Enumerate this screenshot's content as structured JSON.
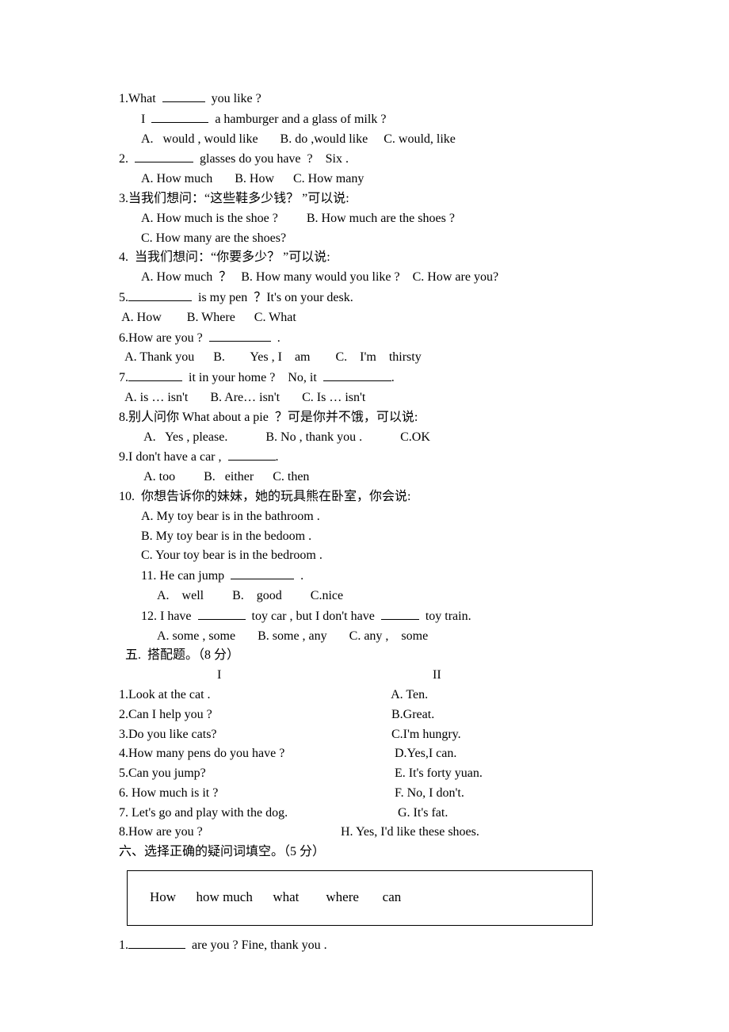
{
  "q1": {
    "line1_a": "1.What  ",
    "line1_b": "  you like ?",
    "line2_a": "I  ",
    "line2_b": "  a hamburger and a glass of milk ?",
    "opts": "A.   would , would like       B. do ,would like     C. would, like",
    "blank1_w": 54,
    "blank2_w": 72
  },
  "q2": {
    "line1_a": "2.  ",
    "line1_b": "  glasses do you have  ?    Six .",
    "opts": "A. How much       B. How      C. How many",
    "blank_w": 74
  },
  "q3": {
    "line1": "3.当我们想问：“这些鞋多少钱？ ”可以说:",
    "opts1": "A. How much is the shoe ?         B. How much are the shoes ?",
    "opts2": "C. How many are the shoes?"
  },
  "q4": {
    "line1": "4.  当我们想问：“你要多少？ ”可以说:",
    "opts": "A. How much  ？   B. How many would you like ?    C. How are you?"
  },
  "q5": {
    "line1_a": "5.",
    "line1_b": "  is my pen  ？It's on your desk.",
    "opts": " A. How        B. Where      C. What",
    "blank_w": 80
  },
  "q6": {
    "line1_a": "6.How are you ?  ",
    "line1_b": "  .",
    "opts": "  A. Thank you      B.        Yes , I    am        C.    I'm    thirsty",
    "blank_w": 78
  },
  "q7": {
    "line1_a": "7.",
    "line1_b": "  it in your home ?    No, it  ",
    "line1_c": ".",
    "opts": "  A. is … isn't       B. Are… isn't       C. Is … isn't",
    "blank1_w": 68,
    "blank2_w": 86
  },
  "q8": {
    "line1": "8.别人问你 What about a pie  ？可是你并不饿，可以说:",
    "opts": " A.   Yes , please.            B. No , thank you .            C.OK"
  },
  "q9": {
    "line1_a": "9.I don't have a car ,  ",
    "line1_b": ".",
    "opts": " A. too         B.   either      C. then",
    "blank_w": 60
  },
  "q10": {
    "line1": "10.  你想告诉你的妹妹，她的玩具熊在卧室，你会说:",
    "a": "A. My toy bear is in the bathroom .",
    "b": "B. My toy bear is in the bedoom .",
    "c": "C. Your toy bear is in the bedroom ."
  },
  "q11": {
    "line1_a": "11. He can jump  ",
    "line1_b": "  .",
    "opts": "A.    well         B.    good         C.nice",
    "blank_w": 80
  },
  "q12": {
    "line1_a": "12. I have  ",
    "line1_b": "  toy car , but I don't have  ",
    "line1_c": "  toy train.",
    "opts": "A. some , some       B. some , any       C. any ,    some",
    "blank1_w": 60,
    "blank2_w": 48
  },
  "section5": {
    "title": "  五.  搭配题。（8 分）",
    "head_l": "                               I",
    "head_r": "              II",
    "rows": [
      {
        "l": "1.Look at the cat .",
        "r": " A. Ten."
      },
      {
        "l": "2.Can I help you ?",
        "r": " B.Great."
      },
      {
        "l": "3.Do you like cats?",
        "r": " C.I'm hungry."
      },
      {
        "l": "4.How many pens do you have ?",
        "r": "  D.Yes,I can."
      },
      {
        "l": "5.Can you jump?",
        "r": "  E. It's forty yuan."
      },
      {
        "l": "6. How much is it ?",
        "r": "  F. No, I don't."
      },
      {
        "l": "7. Let's go and play with the dog.",
        "r": "   G. It's fat."
      },
      {
        "l": "8.How are you ?",
        "r": "H. Yes, I'd like these shoes."
      }
    ],
    "row8_leftcol_w": 280
  },
  "section6": {
    "title": "六、选择正确的疑问词填空。（5 分）",
    "box": "How      how much      what        where       can",
    "q1_a": "1.",
    "q1_b": "  are you ? Fine, thank you .",
    "blank_w": 72
  }
}
